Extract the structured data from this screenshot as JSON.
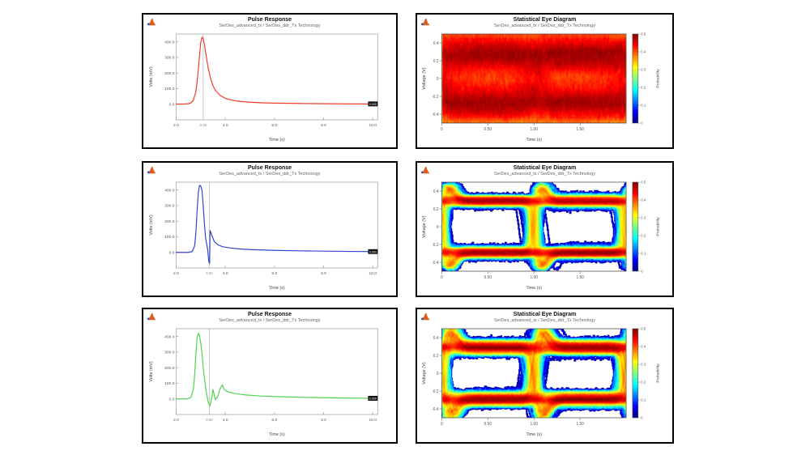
{
  "page": {
    "background": "#ffffff"
  },
  "logo_name": "matlab-logo",
  "chart_data": [
    {
      "type": "line",
      "title": "Pulse Response",
      "subtitle": "SerDes_advanced_tx / SerDes_ddr_Tx Technology",
      "xlabel": "Time (s)",
      "ylabel": "Volts (mV)",
      "color": "#ef3b28",
      "xlim": [
        2,
        10.2
      ],
      "ylim": [
        -100,
        450
      ],
      "xticks": [
        [
          2,
          "2.0"
        ],
        [
          4,
          "4.0"
        ],
        [
          6,
          "6.0"
        ],
        [
          8,
          "8.0"
        ],
        [
          10,
          "10.0"
        ]
      ],
      "yticks": [
        [
          400,
          "400.0"
        ],
        [
          300,
          "300.0"
        ],
        [
          200,
          "200.0"
        ],
        [
          100,
          "100.0"
        ],
        [
          0,
          "0.0"
        ]
      ],
      "refline": {
        "x": 3.1,
        "label": "0.00"
      },
      "end_marker_label": "0.000",
      "points": [
        [
          2.0,
          1
        ],
        [
          2.3,
          1
        ],
        [
          2.5,
          3
        ],
        [
          2.6,
          8
        ],
        [
          2.7,
          25
        ],
        [
          2.8,
          80
        ],
        [
          2.85,
          140
        ],
        [
          2.9,
          220
        ],
        [
          2.95,
          310
        ],
        [
          3.0,
          395
        ],
        [
          3.05,
          430
        ],
        [
          3.1,
          420
        ],
        [
          3.15,
          385
        ],
        [
          3.2,
          330
        ],
        [
          3.3,
          235
        ],
        [
          3.4,
          165
        ],
        [
          3.5,
          118
        ],
        [
          3.6,
          88
        ],
        [
          3.8,
          55
        ],
        [
          4.0,
          38
        ],
        [
          4.3,
          25
        ],
        [
          4.6,
          18
        ],
        [
          5.0,
          13
        ],
        [
          5.5,
          9
        ],
        [
          6.0,
          7
        ],
        [
          7.0,
          5
        ],
        [
          8.0,
          3
        ],
        [
          9.0,
          2
        ],
        [
          10.2,
          2
        ]
      ]
    },
    {
      "type": "heatmap",
      "title": "Statistical Eye Diagram",
      "subtitle": "SerDes_advanced_tx / SerDes_ddr_Tx Technology",
      "xlabel": "Time (s)",
      "ylabel": "Voltage (V)",
      "xlim": [
        0,
        2
      ],
      "ylim": [
        -0.5,
        0.5
      ],
      "xticks": [
        [
          0,
          "0"
        ],
        [
          0.5,
          "0.50"
        ],
        [
          1,
          "1.00"
        ],
        [
          1.5,
          "1.50"
        ]
      ],
      "yticks": [
        [
          0.4,
          "0.4"
        ],
        [
          0.2,
          "0.2"
        ],
        [
          0,
          "0"
        ],
        [
          -0.2,
          "-0.2"
        ],
        [
          -0.4,
          "-0.4"
        ]
      ],
      "colorbar": {
        "label": "Probability",
        "ticks": [
          "0.5",
          "0.4",
          "0.3",
          "0.2",
          "0.1",
          "0"
        ]
      },
      "description": "Dense nearly-closed statistical eye over a 2-UI window, red/orange core with green crossing diamonds",
      "sim": {
        "seed": 7,
        "traces": 1400,
        "level": 0.27,
        "noise": 0.15,
        "col_noise": 0.05,
        "jitter": 0.06,
        "isi": 0.12,
        "transition_width": 0.09,
        "overshoot": 0.1
      }
    },
    {
      "type": "line",
      "title": "Pulse Response",
      "subtitle": "SerDes_advanced_tx / SerDes_ddr_Tx Technology",
      "xlabel": "Time (s)",
      "ylabel": "Volts (mV)",
      "color": "#2f45d0",
      "xlim": [
        2,
        10.2
      ],
      "ylim": [
        -100,
        450
      ],
      "xticks": [
        [
          2,
          "2.0"
        ],
        [
          4,
          "4.0"
        ],
        [
          6,
          "6.0"
        ],
        [
          8,
          "8.0"
        ],
        [
          10,
          "10.0"
        ]
      ],
      "yticks": [
        [
          400,
          "400.0"
        ],
        [
          300,
          "300.0"
        ],
        [
          200,
          "200.0"
        ],
        [
          100,
          "100.0"
        ],
        [
          0,
          "0.0"
        ]
      ],
      "refline": {
        "x": 3.35,
        "label": "0.00"
      },
      "end_marker_label": "0.000",
      "points": [
        [
          2.0,
          0
        ],
        [
          2.5,
          0
        ],
        [
          2.65,
          5
        ],
        [
          2.75,
          40
        ],
        [
          2.8,
          120
        ],
        [
          2.85,
          260
        ],
        [
          2.9,
          380
        ],
        [
          2.95,
          430
        ],
        [
          3.0,
          425
        ],
        [
          3.05,
          400
        ],
        [
          3.1,
          300
        ],
        [
          3.15,
          180
        ],
        [
          3.2,
          90
        ],
        [
          3.28,
          20
        ],
        [
          3.33,
          -60
        ],
        [
          3.36,
          -70
        ],
        [
          3.38,
          140
        ],
        [
          3.45,
          110
        ],
        [
          3.55,
          70
        ],
        [
          3.7,
          48
        ],
        [
          3.9,
          36
        ],
        [
          4.2,
          28
        ],
        [
          4.6,
          22
        ],
        [
          5.0,
          18
        ],
        [
          6.0,
          13
        ],
        [
          7.0,
          10
        ],
        [
          8.0,
          8
        ],
        [
          9.0,
          6
        ],
        [
          10.2,
          5
        ]
      ]
    },
    {
      "type": "heatmap",
      "title": "Statistical Eye Diagram",
      "subtitle": "SerDes_advanced_tx / SerDes_ddr_Tx Technology",
      "xlabel": "Time (s)",
      "ylabel": "Voltage (V)",
      "xlim": [
        0,
        2
      ],
      "ylim": [
        -0.5,
        0.5
      ],
      "xticks": [
        [
          0,
          "0"
        ],
        [
          0.5,
          "0.50"
        ],
        [
          1,
          "1.00"
        ],
        [
          1.5,
          "1.50"
        ]
      ],
      "yticks": [
        [
          0.4,
          "0.4"
        ],
        [
          0.2,
          "0.2"
        ],
        [
          0,
          "0"
        ],
        [
          -0.2,
          "-0.2"
        ],
        [
          -0.4,
          "-0.4"
        ]
      ],
      "colorbar": {
        "label": "Probability",
        "ticks": [
          "0.5",
          "0.4",
          "0.3",
          "0.2",
          "0.1",
          "0"
        ]
      },
      "description": "Open statistical eye over a 2-UI window, two eye openings, red rails with yellow-green transitions and blue fringe",
      "sim": {
        "seed": 11,
        "traces": 1100,
        "level": 0.29,
        "noise": 0.02,
        "col_noise": 0.012,
        "jitter": 0.02,
        "isi": 0.06,
        "transition_width": 0.07,
        "overshoot": 0.5
      }
    },
    {
      "type": "line",
      "title": "Pulse Response",
      "subtitle": "SerDes_advanced_tx / SerDes_ddr_Tx Technology",
      "xlabel": "Time (s)",
      "ylabel": "Volts (mV)",
      "color": "#4fd44f",
      "xlim": [
        2,
        10.2
      ],
      "ylim": [
        -100,
        450
      ],
      "xticks": [
        [
          2,
          "2.0"
        ],
        [
          4,
          "4.0"
        ],
        [
          6,
          "6.0"
        ],
        [
          8,
          "8.0"
        ],
        [
          10,
          "10.0"
        ]
      ],
      "yticks": [
        [
          400,
          "400.0"
        ],
        [
          300,
          "300.0"
        ],
        [
          200,
          "200.0"
        ],
        [
          100,
          "100.0"
        ],
        [
          0,
          "0.0"
        ]
      ],
      "refline": {
        "x": 3.35,
        "label": "0.00"
      },
      "end_marker_label": "0.000",
      "points": [
        [
          2.0,
          0
        ],
        [
          2.45,
          0
        ],
        [
          2.6,
          10
        ],
        [
          2.7,
          60
        ],
        [
          2.75,
          150
        ],
        [
          2.8,
          280
        ],
        [
          2.85,
          390
        ],
        [
          2.9,
          420
        ],
        [
          2.95,
          405
        ],
        [
          3.0,
          360
        ],
        [
          3.05,
          290
        ],
        [
          3.1,
          200
        ],
        [
          3.2,
          70
        ],
        [
          3.3,
          -20
        ],
        [
          3.38,
          -45
        ],
        [
          3.45,
          10
        ],
        [
          3.5,
          60
        ],
        [
          3.55,
          25
        ],
        [
          3.6,
          -5
        ],
        [
          3.7,
          20
        ],
        [
          3.8,
          70
        ],
        [
          3.88,
          90
        ],
        [
          3.95,
          60
        ],
        [
          4.1,
          45
        ],
        [
          4.4,
          34
        ],
        [
          4.8,
          26
        ],
        [
          5.4,
          19
        ],
        [
          6.2,
          14
        ],
        [
          7.2,
          10
        ],
        [
          8.2,
          7
        ],
        [
          9.2,
          5
        ],
        [
          10.2,
          4
        ]
      ]
    },
    {
      "type": "heatmap",
      "title": "Statistical Eye Diagram",
      "subtitle": "SerDes_advanced_tx / SerDes_ddr_Tx Technology",
      "xlabel": "Time (s)",
      "ylabel": "Voltage (V)",
      "xlim": [
        0,
        2
      ],
      "ylim": [
        -0.5,
        0.5
      ],
      "xticks": [
        [
          0,
          "0"
        ],
        [
          0.5,
          "0.50"
        ],
        [
          1,
          "1.00"
        ],
        [
          1.5,
          "1.50"
        ]
      ],
      "yticks": [
        [
          0.4,
          "0.4"
        ],
        [
          0.2,
          "0.2"
        ],
        [
          0,
          "0"
        ],
        [
          -0.2,
          "-0.2"
        ],
        [
          -0.4,
          "-0.4"
        ]
      ],
      "colorbar": {
        "label": "Probability",
        "ticks": [
          "0.5",
          "0.4",
          "0.3",
          "0.2",
          "0.1",
          "0"
        ]
      },
      "description": "Open statistical eye over a 2-UI window with stronger overshoot bumps at the crossings",
      "sim": {
        "seed": 23,
        "traces": 1100,
        "level": 0.29,
        "noise": 0.022,
        "col_noise": 0.012,
        "jitter": 0.022,
        "isi": 0.09,
        "transition_width": 0.08,
        "overshoot": 0.6
      }
    }
  ]
}
